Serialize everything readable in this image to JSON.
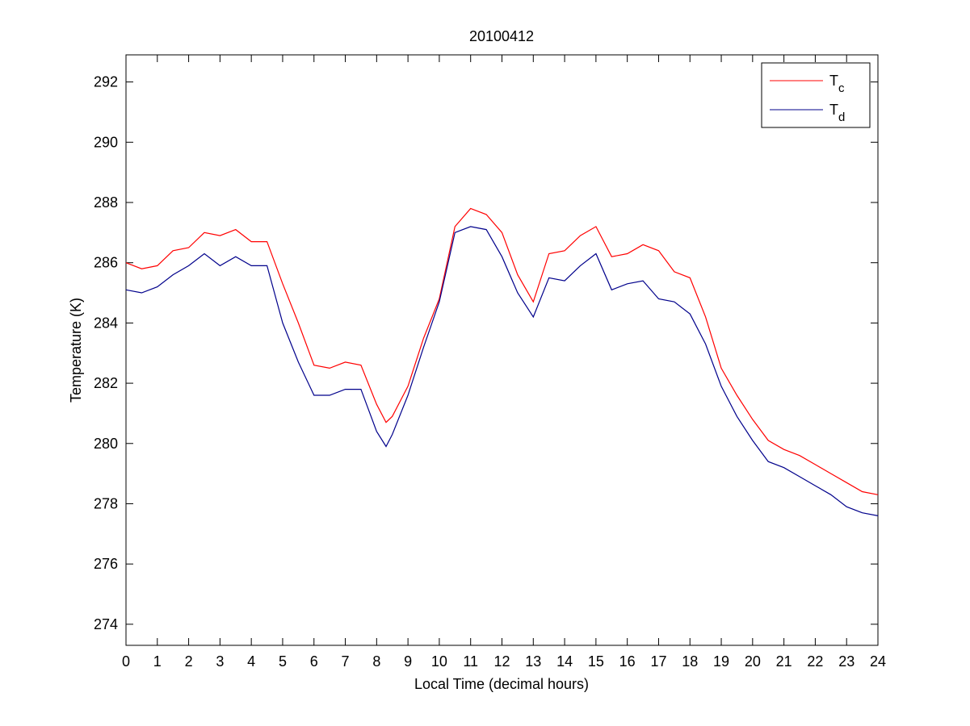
{
  "chart_data": {
    "type": "line",
    "title": "20100412",
    "x_label": "Local Time (decimal hours)",
    "y_label": "Temperature (K)",
    "x": [
      0,
      0.5,
      1,
      1.5,
      2,
      2.5,
      3,
      3.5,
      4,
      4.5,
      5,
      5.5,
      6,
      6.5,
      7,
      7.5,
      8,
      8.3,
      8.5,
      9,
      9.5,
      10,
      10.5,
      11,
      11.5,
      12,
      12.5,
      13,
      13.5,
      14,
      14.5,
      15,
      15.5,
      16,
      16.5,
      17,
      17.5,
      18,
      18.5,
      19,
      19.5,
      20,
      20.5,
      21,
      21.5,
      22,
      22.5,
      23,
      23.5,
      24
    ],
    "series": [
      {
        "name": "Tc",
        "color": "#ff0000",
        "values": [
          286.0,
          285.8,
          285.9,
          286.4,
          286.5,
          287.0,
          286.9,
          287.1,
          286.7,
          286.7,
          285.3,
          284.0,
          282.6,
          282.5,
          282.7,
          282.6,
          281.3,
          280.7,
          280.9,
          281.9,
          283.5,
          284.8,
          287.2,
          287.8,
          287.6,
          287.0,
          285.6,
          284.7,
          286.3,
          286.4,
          286.9,
          287.2,
          286.2,
          286.3,
          286.6,
          286.4,
          285.7,
          285.5,
          284.2,
          282.5,
          281.6,
          280.8,
          280.1,
          279.8,
          279.6,
          279.3,
          279.0,
          278.7,
          278.4,
          278.3
        ]
      },
      {
        "name": "Td",
        "color": "#00008b",
        "values": [
          285.1,
          285.0,
          285.2,
          285.6,
          285.9,
          286.3,
          285.9,
          286.2,
          285.9,
          285.9,
          284.0,
          282.7,
          281.6,
          281.6,
          281.8,
          281.8,
          280.4,
          279.9,
          280.3,
          281.6,
          283.2,
          284.7,
          287.0,
          287.2,
          287.1,
          286.2,
          285.0,
          284.2,
          285.5,
          285.4,
          285.9,
          286.3,
          285.1,
          285.3,
          285.4,
          284.8,
          284.7,
          284.3,
          283.3,
          281.9,
          280.9,
          280.1,
          279.4,
          279.2,
          278.9,
          278.6,
          278.3,
          277.9,
          277.7,
          277.6
        ]
      }
    ],
    "xlim": [
      0,
      24
    ],
    "xticks": [
      0,
      1,
      2,
      3,
      4,
      5,
      6,
      7,
      8,
      9,
      10,
      11,
      12,
      13,
      14,
      15,
      16,
      17,
      18,
      19,
      20,
      21,
      22,
      23,
      24
    ],
    "ylim": [
      273.3,
      292.9
    ],
    "yticks": [
      274,
      276,
      278,
      280,
      282,
      284,
      286,
      288,
      290,
      292
    ],
    "grid": false,
    "legend": "upper right"
  }
}
